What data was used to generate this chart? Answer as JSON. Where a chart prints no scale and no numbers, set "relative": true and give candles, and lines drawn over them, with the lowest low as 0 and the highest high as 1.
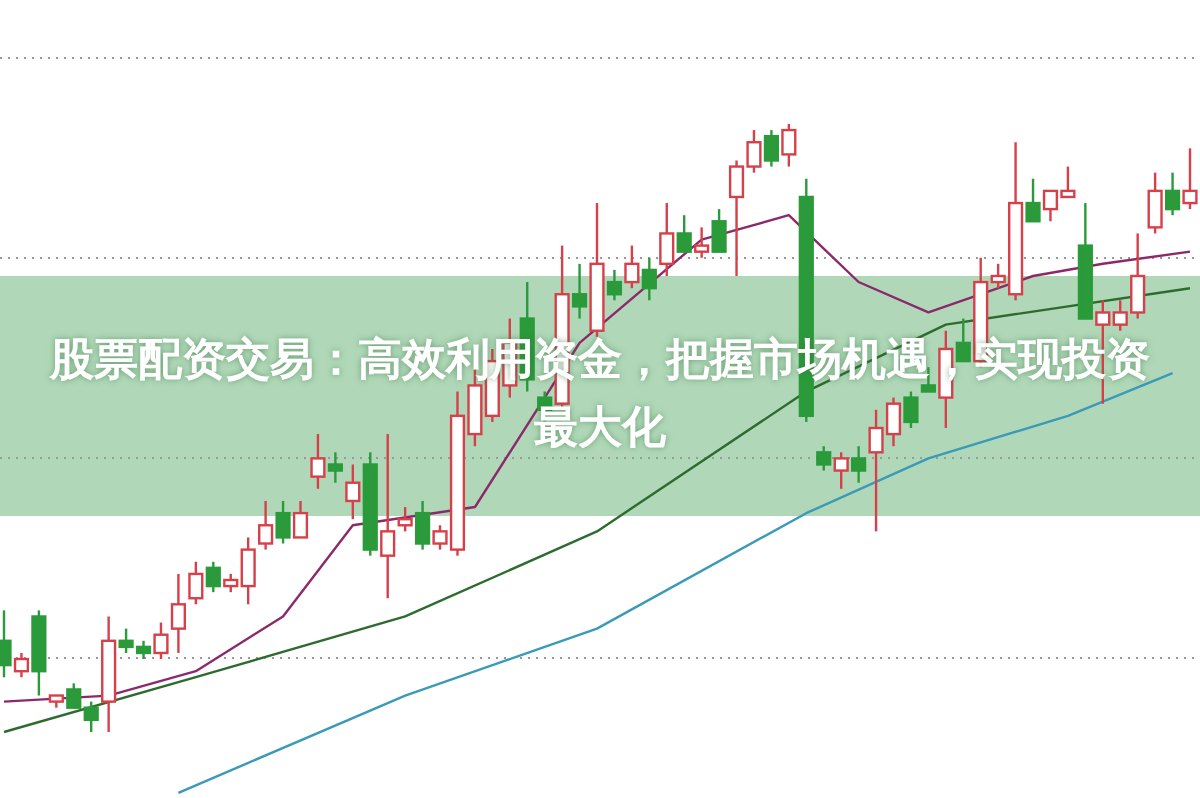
{
  "chart_data": {
    "type": "candlestick",
    "title": "股票配资交易：高效利用资金，把握市场机遇，实现投资最大化",
    "relative": true,
    "grid": "y",
    "categories": [
      null,
      null,
      null,
      null,
      null,
      null,
      null,
      null,
      null,
      null,
      null,
      null,
      null,
      null,
      null,
      null,
      null,
      null,
      null,
      null,
      null,
      null,
      null,
      null,
      null,
      null,
      null,
      null,
      null,
      null,
      null,
      null,
      null,
      null,
      null,
      null,
      null,
      null,
      null,
      null,
      null,
      null,
      null,
      null,
      null,
      null,
      null,
      null,
      null,
      null,
      null,
      null,
      null,
      null,
      null,
      null,
      null,
      null,
      null,
      null,
      null,
      null,
      null,
      null,
      null,
      null,
      null,
      null,
      null
    ],
    "ohlc": [
      [
        0.15,
        0.2,
        0.09,
        0.11
      ],
      [
        0.1,
        0.13,
        0.09,
        0.12
      ],
      [
        0.19,
        0.2,
        0.06,
        0.1
      ],
      [
        0.05,
        0.06,
        0.04,
        0.06
      ],
      [
        0.07,
        0.08,
        0.04,
        0.04
      ],
      [
        0.04,
        0.05,
        0.0,
        0.02
      ],
      [
        0.05,
        0.19,
        0.0,
        0.15
      ],
      [
        0.15,
        0.17,
        0.13,
        0.14
      ],
      [
        0.14,
        0.15,
        0.12,
        0.13
      ],
      [
        0.13,
        0.18,
        0.12,
        0.16
      ],
      [
        0.17,
        0.26,
        0.13,
        0.21
      ],
      [
        0.22,
        0.28,
        0.21,
        0.26
      ],
      [
        0.27,
        0.28,
        0.23,
        0.24
      ],
      [
        0.24,
        0.26,
        0.23,
        0.25
      ],
      [
        0.24,
        0.32,
        0.21,
        0.3
      ],
      [
        0.31,
        0.38,
        0.3,
        0.34
      ],
      [
        0.36,
        0.38,
        0.31,
        0.32
      ],
      [
        0.32,
        0.38,
        0.32,
        0.36
      ],
      [
        0.42,
        0.49,
        0.4,
        0.45
      ],
      [
        0.44,
        0.46,
        0.41,
        0.43
      ],
      [
        0.38,
        0.44,
        0.35,
        0.41
      ],
      [
        0.44,
        0.46,
        0.29,
        0.3
      ],
      [
        0.29,
        0.49,
        0.22,
        0.33
      ],
      [
        0.34,
        0.37,
        0.33,
        0.35
      ],
      [
        0.36,
        0.38,
        0.3,
        0.31
      ],
      [
        0.31,
        0.34,
        0.3,
        0.33
      ],
      [
        0.3,
        0.56,
        0.29,
        0.52
      ],
      [
        0.49,
        0.6,
        0.47,
        0.57
      ],
      [
        0.52,
        0.63,
        0.51,
        0.61
      ],
      [
        0.57,
        0.68,
        0.55,
        0.64
      ],
      [
        0.68,
        0.74,
        0.56,
        0.58
      ],
      [
        0.55,
        0.56,
        0.51,
        0.53
      ],
      [
        0.54,
        0.8,
        0.53,
        0.72
      ],
      [
        0.72,
        0.77,
        0.68,
        0.7
      ],
      [
        0.66,
        0.87,
        0.65,
        0.77
      ],
      [
        0.74,
        0.76,
        0.71,
        0.72
      ],
      [
        0.74,
        0.8,
        0.73,
        0.77
      ],
      [
        0.76,
        0.78,
        0.71,
        0.73
      ],
      [
        0.77,
        0.87,
        0.75,
        0.82
      ],
      [
        0.82,
        0.85,
        0.79,
        0.79
      ],
      [
        0.79,
        0.83,
        0.78,
        0.8
      ],
      [
        0.84,
        0.86,
        0.79,
        0.79
      ],
      [
        0.88,
        0.94,
        0.75,
        0.93
      ],
      [
        0.93,
        0.99,
        0.92,
        0.97
      ],
      [
        0.98,
        0.99,
        0.93,
        0.94
      ],
      [
        0.95,
        1.0,
        0.93,
        0.99
      ],
      [
        0.88,
        0.91,
        0.51,
        0.52
      ],
      [
        0.46,
        0.47,
        0.43,
        0.44
      ],
      [
        0.43,
        0.46,
        0.4,
        0.45
      ],
      [
        0.45,
        0.47,
        0.41,
        0.43
      ],
      [
        0.46,
        0.53,
        0.33,
        0.5
      ],
      [
        0.49,
        0.55,
        0.47,
        0.54
      ],
      [
        0.55,
        0.56,
        0.5,
        0.51
      ],
      [
        0.57,
        0.6,
        0.56,
        0.56
      ],
      [
        0.55,
        0.66,
        0.5,
        0.63
      ],
      [
        0.64,
        0.68,
        0.61,
        0.61
      ],
      [
        0.61,
        0.78,
        0.6,
        0.74
      ],
      [
        0.74,
        0.77,
        0.73,
        0.75
      ],
      [
        0.72,
        0.97,
        0.71,
        0.87
      ],
      [
        0.87,
        0.91,
        0.84,
        0.84
      ],
      [
        0.86,
        0.89,
        0.84,
        0.89
      ],
      [
        0.88,
        0.93,
        0.88,
        0.89
      ],
      [
        0.8,
        0.87,
        0.68,
        0.68
      ],
      [
        0.67,
        0.71,
        0.54,
        0.69
      ],
      [
        0.67,
        0.71,
        0.66,
        0.69
      ],
      [
        0.69,
        0.82,
        0.68,
        0.75
      ],
      [
        0.83,
        0.92,
        0.82,
        0.89
      ],
      [
        0.89,
        0.92,
        0.85,
        0.86
      ],
      [
        0.87,
        0.96,
        0.86,
        0.89
      ]
    ],
    "series": [
      {
        "type": "line",
        "color": "#3a9ab8",
        "values": [
          null,
          null,
          null,
          null,
          null,
          null,
          null,
          null,
          null,
          null,
          -0.1,
          null,
          null,
          null,
          null,
          null,
          null,
          null,
          null,
          null,
          null,
          null,
          null,
          0.06,
          null,
          null,
          null,
          null,
          null,
          null,
          null,
          null,
          null,
          null,
          0.17,
          null,
          null,
          null,
          null,
          null,
          null,
          null,
          null,
          null,
          null,
          null,
          0.36,
          null,
          null,
          null,
          null,
          null,
          null,
          0.45,
          null,
          null,
          null,
          null,
          null,
          null,
          null,
          0.52,
          null,
          null,
          null,
          null,
          null,
          0.59,
          null
        ]
      },
      {
        "type": "line",
        "color": "#2e6b2e",
        "values": [
          0.0,
          null,
          null,
          null,
          null,
          null,
          null,
          null,
          null,
          null,
          null,
          0.09,
          null,
          null,
          null,
          null,
          null,
          null,
          null,
          null,
          null,
          null,
          null,
          0.19,
          null,
          null,
          null,
          null,
          null,
          null,
          null,
          null,
          null,
          null,
          0.33,
          null,
          null,
          null,
          null,
          null,
          null,
          null,
          null,
          null,
          null,
          null,
          0.56,
          null,
          null,
          null,
          null,
          null,
          null,
          null,
          0.67,
          null,
          null,
          null,
          null,
          null,
          null,
          null,
          null,
          null,
          null,
          null,
          null,
          null,
          0.73
        ]
      },
      {
        "type": "line",
        "color": "#8b2a6b",
        "values": [
          0.05,
          null,
          null,
          null,
          null,
          null,
          0.06,
          null,
          null,
          null,
          null,
          0.1,
          null,
          null,
          null,
          null,
          0.19,
          null,
          null,
          null,
          0.34,
          null,
          null,
          null,
          null,
          null,
          null,
          0.37,
          null,
          null,
          null,
          null,
          null,
          0.64,
          null,
          null,
          null,
          null,
          null,
          null,
          0.81,
          null,
          null,
          null,
          null,
          0.85,
          null,
          null,
          null,
          0.74,
          null,
          null,
          null,
          0.69,
          null,
          null,
          null,
          null,
          null,
          0.75,
          null,
          null,
          null,
          0.77,
          null,
          null,
          null,
          null,
          0.79
        ]
      }
    ]
  }
}
